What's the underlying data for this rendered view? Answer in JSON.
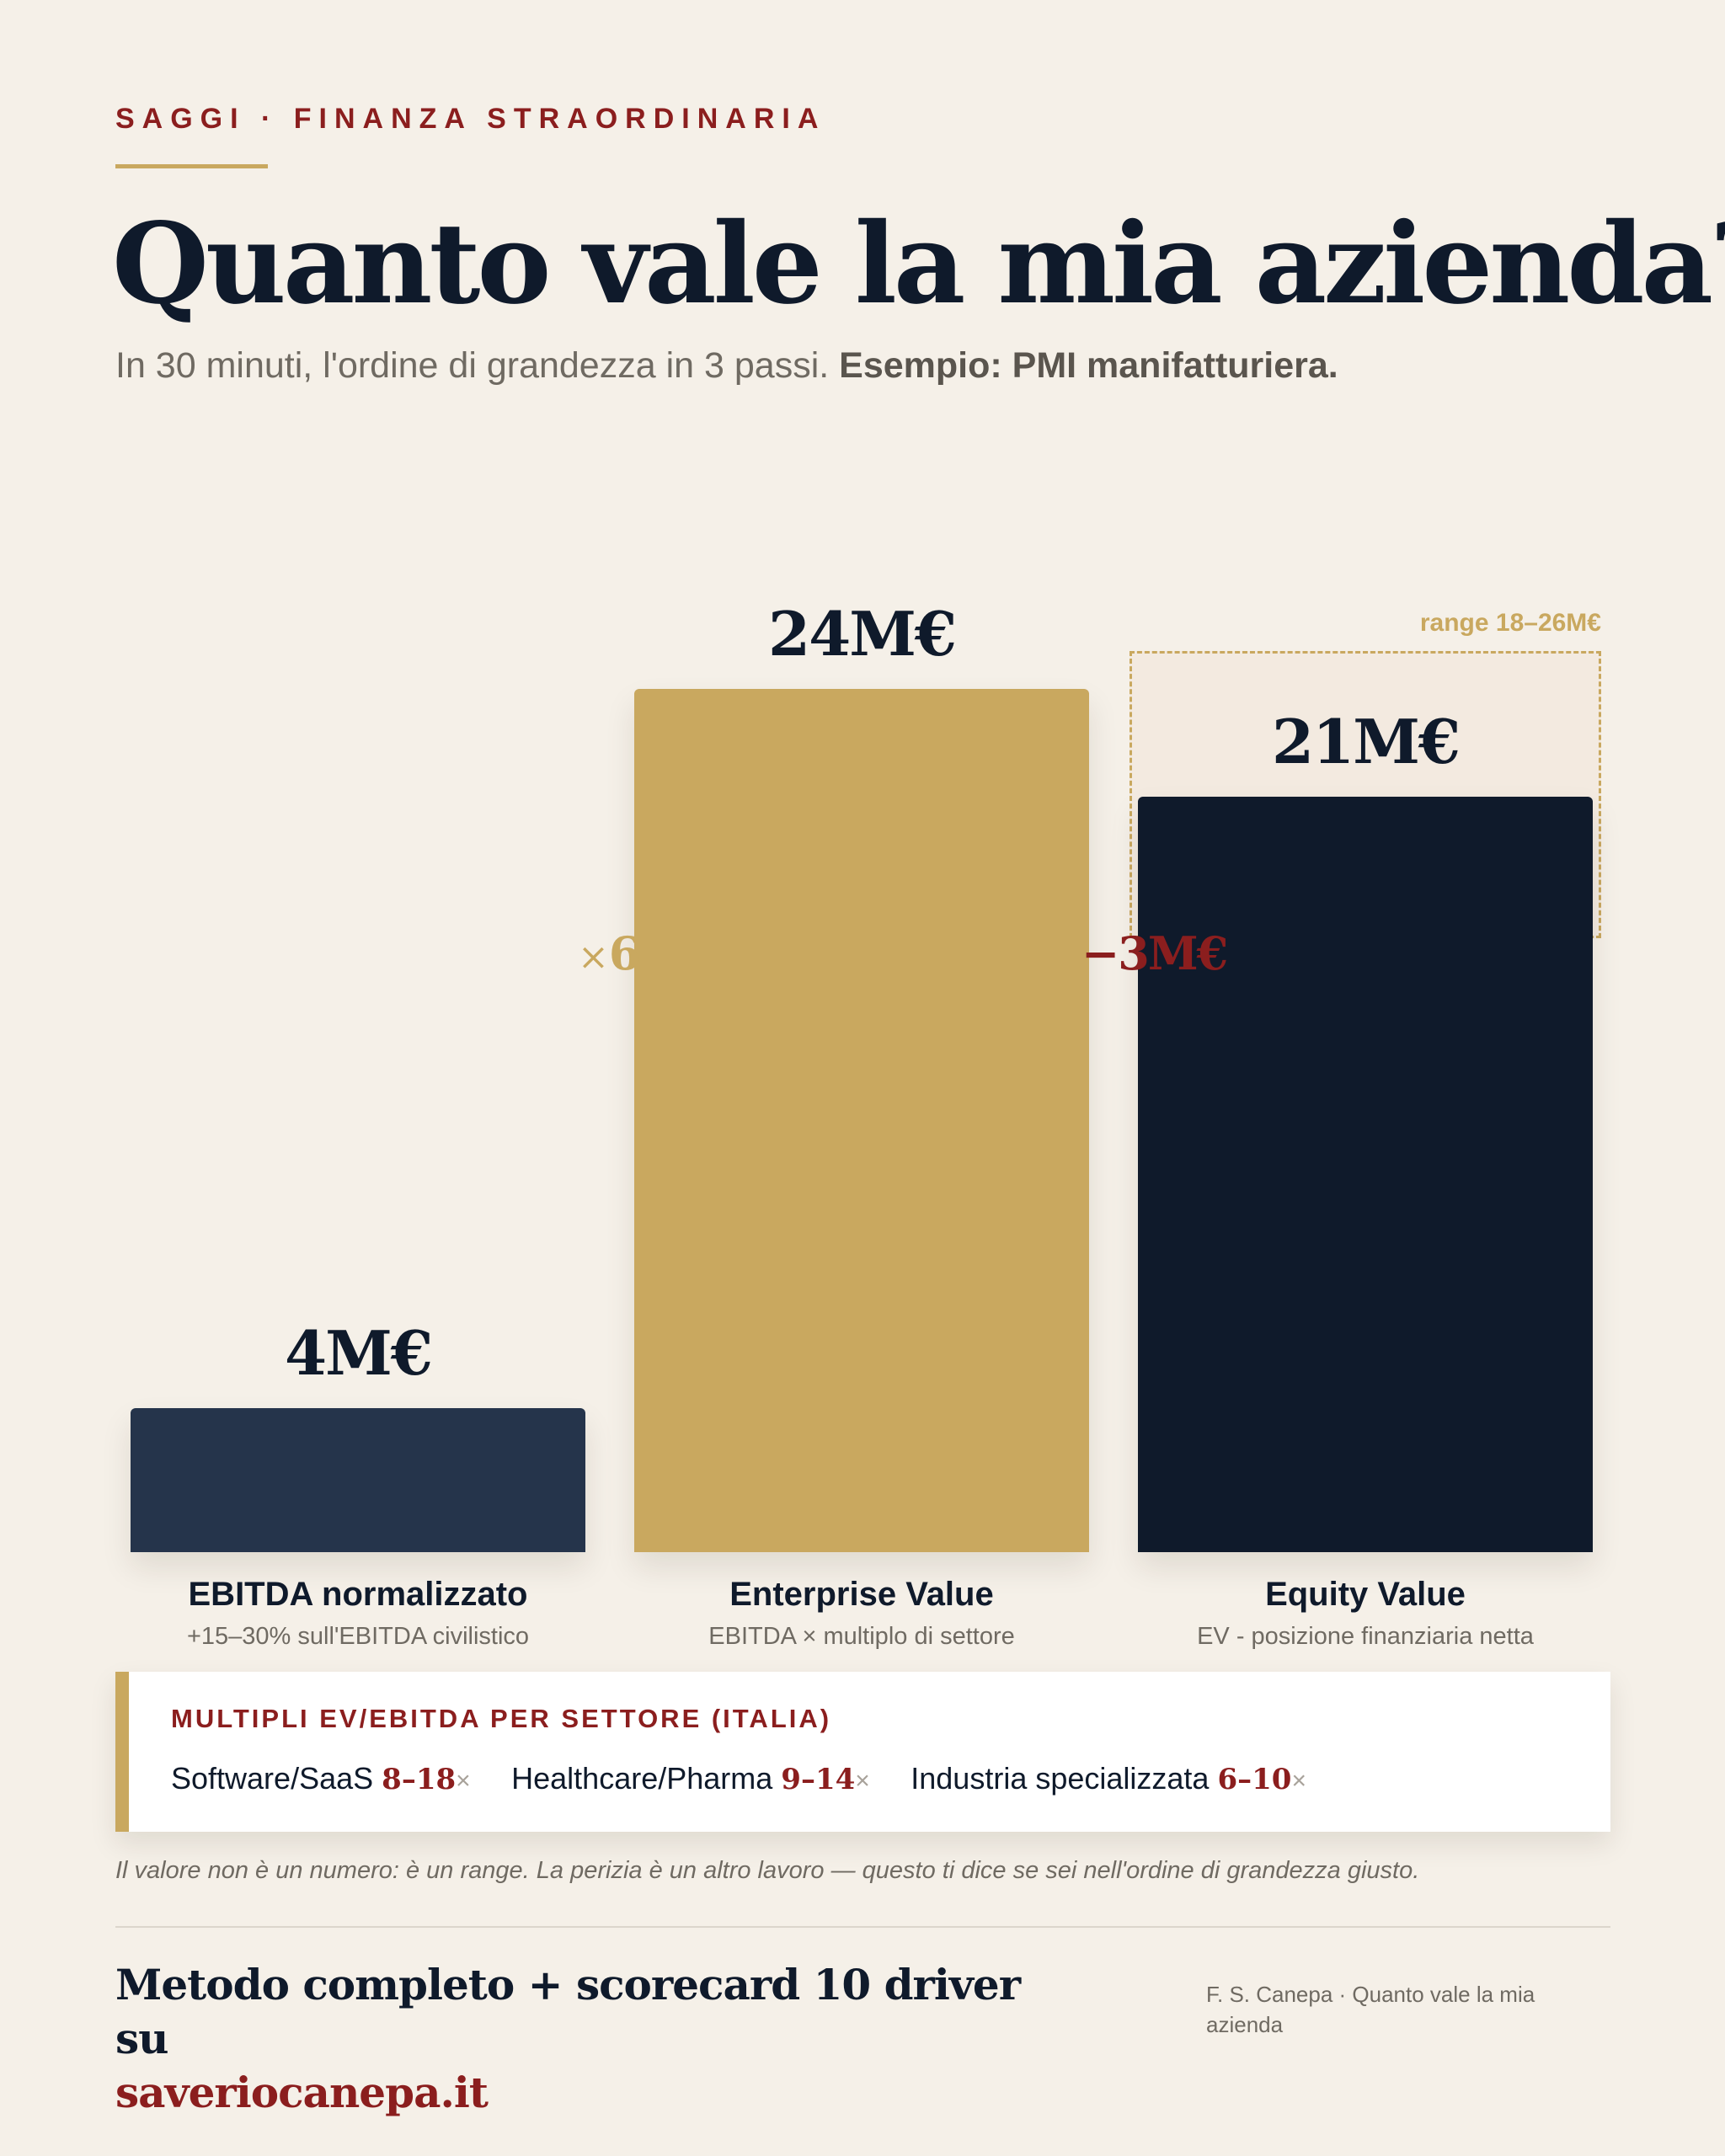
{
  "header": {
    "eyebrow": "SAGGI · FINANZA STRAORDINARIA",
    "title": "Quanto vale la mia azienda?",
    "subtitle_plain": "In 30 minuti, l'ordine di grandezza in 3 passi.",
    "subtitle_bold": "Esempio: PMI manifatturiera."
  },
  "chart_data": {
    "type": "bar",
    "categories": [
      "EBITDA normalizzato",
      "Enterprise Value",
      "Equity Value"
    ],
    "values": [
      4,
      24,
      21
    ],
    "value_labels": [
      "4M€",
      "24M€",
      "21M€"
    ],
    "sublabels": [
      "+15–30% sull'EBITDA civilistico",
      "EBITDA × multiplo di settore",
      "EV - posizione finanziaria netta"
    ],
    "colors": [
      "#25344b",
      "#c9a85f",
      "#0f1a2b"
    ],
    "unit": "M€",
    "ylim": [
      0,
      24
    ],
    "grid": false,
    "annotations": {
      "multiplier": "6",
      "multiplier_symbol": "×",
      "net_debt": "−3M€",
      "range_label": "range 18–26M€",
      "range_low": 18,
      "range_high": 26
    }
  },
  "multiples_card": {
    "title": "MULTIPLI EV/EBITDA PER SETTORE (ITALIA)",
    "items": [
      {
        "sector": "Software/SaaS",
        "range": "8–18",
        "suffix": "×"
      },
      {
        "sector": "Healthcare/Pharma",
        "range": "9–14",
        "suffix": "×"
      },
      {
        "sector": "Industria specializzata",
        "range": "6–10",
        "suffix": "×"
      }
    ]
  },
  "note": "Il valore non è un numero: è un range. La perizia è un altro lavoro — questo ti dice se sei nell'ordine di grandezza giusto.",
  "footer": {
    "cta_text": "Metodo completo + scorecard 10 driver su",
    "cta_link": "saveriocanepa.it",
    "credit": "F. S. Canepa · Quanto vale la mia azienda"
  }
}
